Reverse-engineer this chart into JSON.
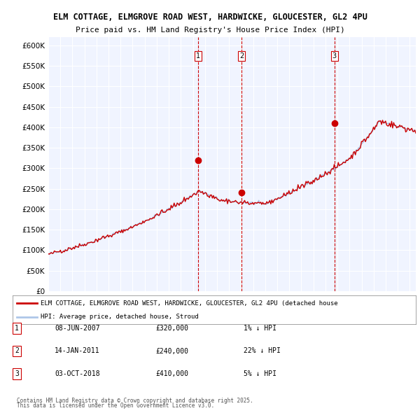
{
  "title1": "ELM COTTAGE, ELMGROVE ROAD WEST, HARDWICKE, GLOUCESTER, GL2 4PU",
  "title2": "Price paid vs. HM Land Registry's House Price Index (HPI)",
  "ylabel_ticks": [
    "£0",
    "£50K",
    "£100K",
    "£150K",
    "£200K",
    "£250K",
    "£300K",
    "£350K",
    "£400K",
    "£450K",
    "£500K",
    "£550K",
    "£600K"
  ],
  "ytick_values": [
    0,
    50000,
    100000,
    150000,
    200000,
    250000,
    300000,
    350000,
    400000,
    450000,
    500000,
    550000,
    600000
  ],
  "x_start_year": 1995,
  "x_end_year": 2025,
  "background_color": "#ffffff",
  "plot_bg_color": "#f0f4ff",
  "grid_color": "#ffffff",
  "hpi_color": "#aec6e8",
  "price_color": "#cc0000",
  "sale_marker_color": "#cc0000",
  "vline_color": "#cc0000",
  "legend_line1": "ELM COTTAGE, ELMGROVE ROAD WEST, HARDWICKE, GLOUCESTER, GL2 4PU (detached house",
  "legend_line2": "HPI: Average price, detached house, Stroud",
  "sales": [
    {
      "label": "1",
      "date_num": 2007.44,
      "price": 320000,
      "text": "08-JUN-2007",
      "price_str": "£320,000",
      "pct": "1% ↓ HPI"
    },
    {
      "label": "2",
      "date_num": 2011.04,
      "price": 240000,
      "text": "14-JAN-2011",
      "price_str": "£240,000",
      "pct": "22% ↓ HPI"
    },
    {
      "label": "3",
      "date_num": 2018.75,
      "price": 410000,
      "text": "03-OCT-2018",
      "price_str": "£410,000",
      "pct": "5% ↓ HPI"
    }
  ],
  "footer1": "Contains HM Land Registry data © Crown copyright and database right 2025.",
  "footer2": "This data is licensed under the Open Government Licence v3.0."
}
